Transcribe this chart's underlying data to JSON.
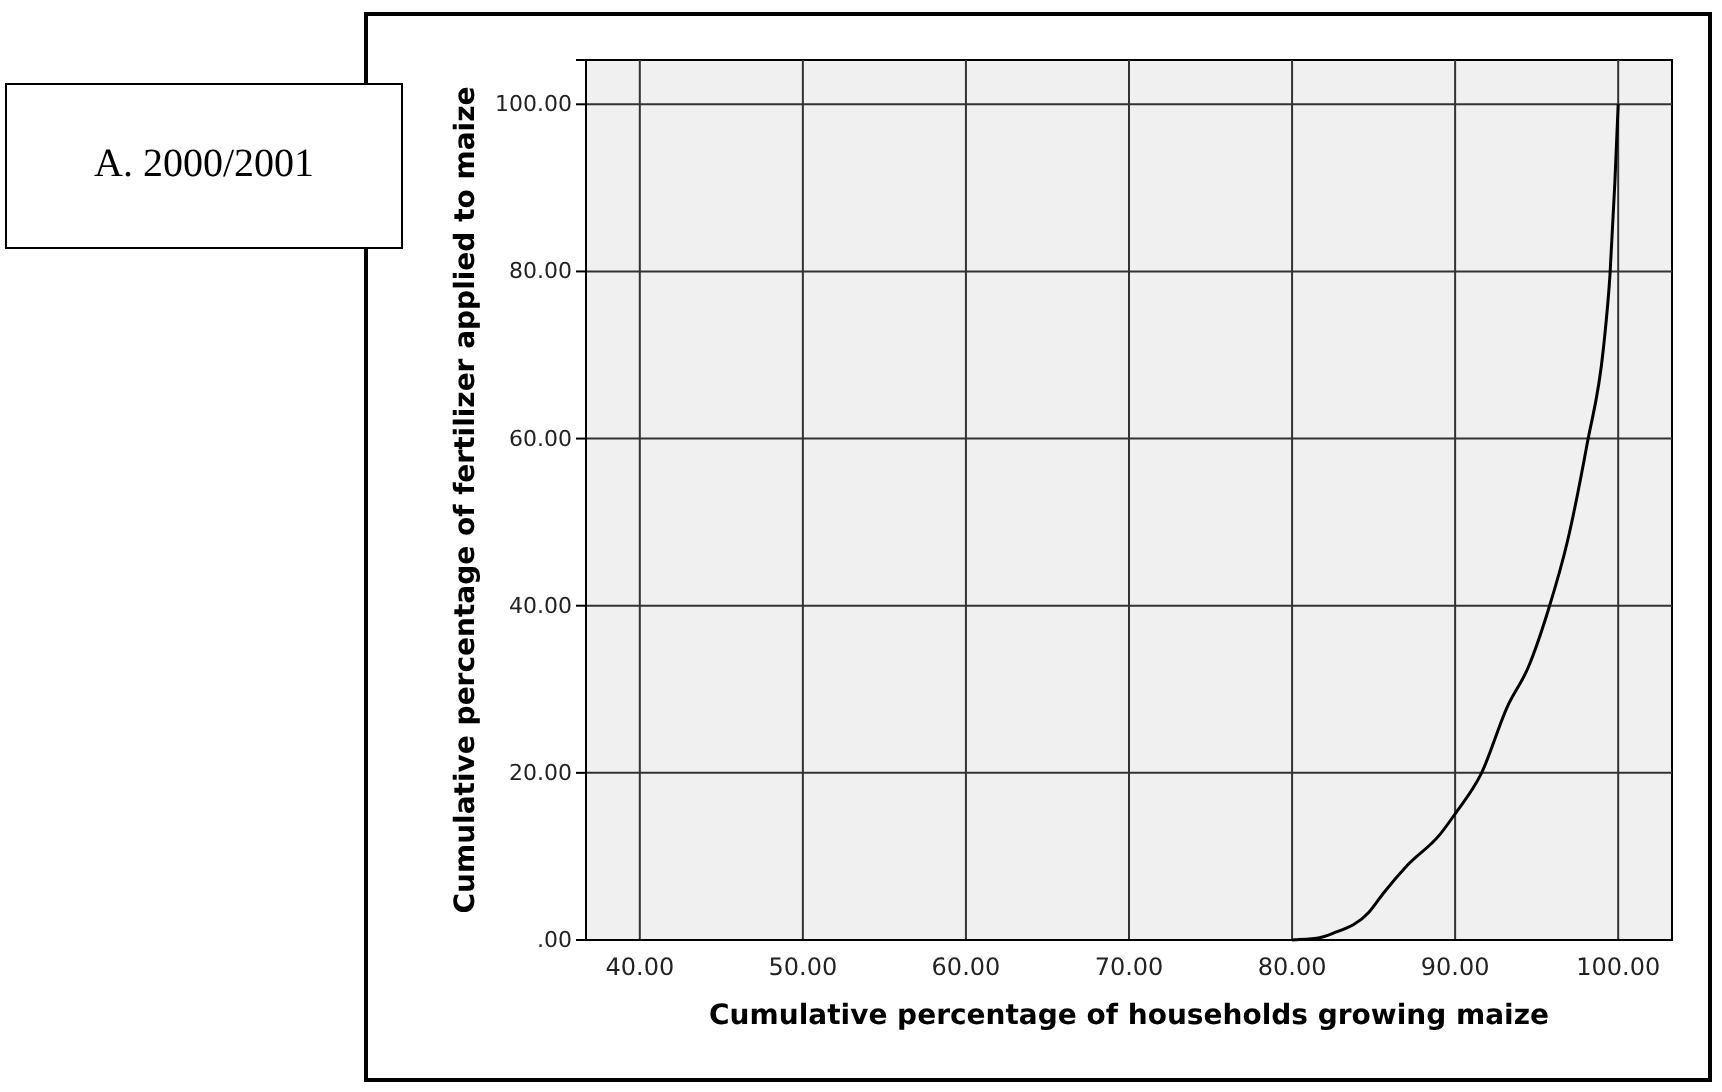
{
  "chart_data": {
    "type": "line",
    "annotations": [
      "A. 2000/2001"
    ],
    "xlabel": "Cumulative percentage of households growing maize",
    "ylabel": "Cumulative percentage of fertilizer applied to maize",
    "xlim": [
      36.7,
      103.3
    ],
    "ylim": [
      0,
      105.3
    ],
    "xticks": [
      {
        "value": 40,
        "label": "40.00"
      },
      {
        "value": 50,
        "label": "50.00"
      },
      {
        "value": 60,
        "label": "60.00"
      },
      {
        "value": 70,
        "label": "70.00"
      },
      {
        "value": 80,
        "label": "80.00"
      },
      {
        "value": 90,
        "label": "90.00"
      },
      {
        "value": 100,
        "label": "100.00"
      }
    ],
    "yticks": [
      {
        "value": 0,
        "label": ".00"
      },
      {
        "value": 20,
        "label": "20.00"
      },
      {
        "value": 40,
        "label": "40.00"
      },
      {
        "value": 60,
        "label": "60.00"
      },
      {
        "value": 80,
        "label": "80.00"
      },
      {
        "value": 100,
        "label": "100.00"
      }
    ],
    "grid": true,
    "marker": "none",
    "line_style": "solid",
    "series": [
      {
        "color": "#000000",
        "x": [
          80,
          81.5,
          82.5,
          84.7,
          85.6,
          87.0,
          89.1,
          90,
          91.6,
          93.2,
          94.5,
          95.7,
          96.9,
          98.1,
          99.1,
          99.5,
          99.8,
          100
        ],
        "values": [
          0,
          0.2,
          0.8,
          3.3,
          5.6,
          8.8,
          12.7,
          15.1,
          19.9,
          27.9,
          32.7,
          39.4,
          47.8,
          59.4,
          70.9,
          79.7,
          90.8,
          100
        ]
      }
    ]
  }
}
